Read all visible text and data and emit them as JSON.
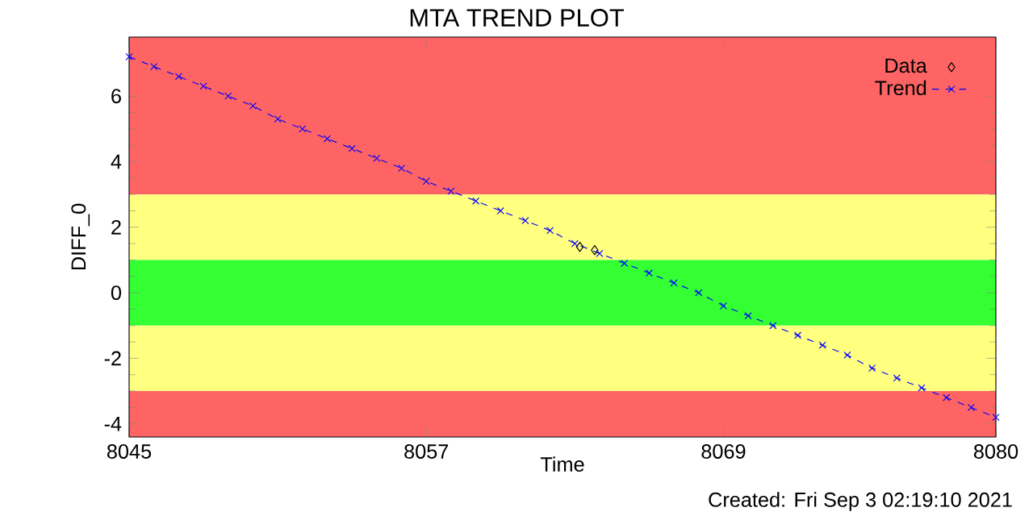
{
  "chart_data": {
    "type": "line",
    "title": "MTA TREND PLOT",
    "xlabel": "Time",
    "ylabel": "DIFF_0",
    "annotations": [
      "Created: Fri Sep  3 02:19:10 2021"
    ],
    "xlim": [
      8045,
      8080
    ],
    "xticks": [
      8045,
      8057,
      8069,
      8080
    ],
    "ylim": [
      -4.4,
      7.8
    ],
    "yticks": [
      -4,
      -2,
      0,
      2,
      4,
      6
    ],
    "bands": [
      {
        "axis": "y",
        "from": 3,
        "to": 7.8,
        "color": "#ff6464"
      },
      {
        "axis": "y",
        "from": 1,
        "to": 3,
        "color": "#ffff80"
      },
      {
        "axis": "y",
        "from": -1,
        "to": 1,
        "color": "#33ff33"
      },
      {
        "axis": "y",
        "from": -3,
        "to": -1,
        "color": "#ffff80"
      },
      {
        "axis": "y",
        "from": -4.4,
        "to": -3,
        "color": "#ff6464"
      }
    ],
    "legend": "top right",
    "grid": false,
    "series": [
      {
        "name": "Data",
        "type": "scatter",
        "marker": "diamond",
        "color": "#000000",
        "x": [
          8063.2,
          8063.8
        ],
        "values": [
          1.4,
          1.3
        ]
      },
      {
        "name": "Trend",
        "type": "line",
        "marker": "cross",
        "line_style": "dashed",
        "color": "#0000ff",
        "x": [
          8045,
          8046,
          8047,
          8048,
          8049,
          8050,
          8051,
          8052,
          8053,
          8054,
          8055,
          8056,
          8057,
          8058,
          8059,
          8060,
          8061,
          8062,
          8063,
          8064,
          8065,
          8066,
          8067,
          8068,
          8069,
          8070,
          8071,
          8072,
          8073,
          8074,
          8075,
          8076,
          8077,
          8078,
          8079,
          8080
        ],
        "values": [
          7.2,
          6.9,
          6.6,
          6.3,
          6.0,
          5.7,
          5.3,
          5.0,
          4.7,
          4.4,
          4.1,
          3.8,
          3.4,
          3.1,
          2.8,
          2.5,
          2.2,
          1.9,
          1.5,
          1.2,
          0.9,
          0.6,
          0.3,
          0.0,
          -0.4,
          -0.7,
          -1.0,
          -1.3,
          -1.6,
          -1.9,
          -2.3,
          -2.6,
          -2.9,
          -3.2,
          -3.5,
          -3.8
        ]
      }
    ]
  }
}
